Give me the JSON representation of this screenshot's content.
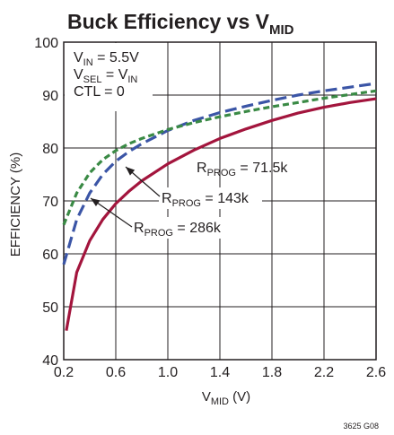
{
  "chart_data": {
    "type": "line",
    "title": {
      "main": "Buck Efficiency vs V",
      "sub": "MID"
    },
    "xlabel": {
      "main": "V",
      "sub": "MID",
      "unit": " (V)"
    },
    "ylabel": "EFFICIENCY (%)",
    "xlim": [
      0.2,
      2.6
    ],
    "ylim": [
      40,
      100
    ],
    "xticks": [
      "0.2",
      "0.6",
      "1.0",
      "1.4",
      "1.8",
      "2.2",
      "2.6"
    ],
    "yticks": [
      "40",
      "50",
      "60",
      "70",
      "80",
      "90",
      "100"
    ],
    "grid": true,
    "conditions": [
      {
        "main": "V",
        "sub": "IN",
        "rest": " = 5.5V"
      },
      {
        "main": "V",
        "sub": "SEL",
        "rest": " = V",
        "sub2": "IN"
      },
      {
        "main": "CTL = 0"
      }
    ],
    "series": [
      {
        "name": "RPROG = 71.5k",
        "label": {
          "main": "R",
          "sub": "PROG",
          "rest": " = 71.5k"
        },
        "color": "#a3153d",
        "dash": "solid",
        "x": [
          0.22,
          0.3,
          0.4,
          0.5,
          0.6,
          0.7,
          0.8,
          1.0,
          1.2,
          1.4,
          1.6,
          1.8,
          2.0,
          2.2,
          2.4,
          2.6
        ],
        "y": [
          45.5,
          56.5,
          62.5,
          66.5,
          69.5,
          71.8,
          73.8,
          77.0,
          79.6,
          81.8,
          83.6,
          85.2,
          86.6,
          87.7,
          88.6,
          89.3
        ]
      },
      {
        "name": "RPROG = 143k",
        "label": {
          "main": "R",
          "sub": "PROG",
          "rest": " = 143k"
        },
        "color": "#3b55a6",
        "dash": "long",
        "x": [
          0.2,
          0.3,
          0.4,
          0.5,
          0.6,
          0.7,
          0.8,
          1.0,
          1.2,
          1.4,
          1.6,
          1.8,
          2.0,
          2.2,
          2.4,
          2.6
        ],
        "y": [
          58.0,
          66.5,
          71.5,
          75.0,
          77.5,
          79.3,
          80.8,
          83.3,
          85.2,
          86.7,
          87.9,
          89.0,
          90.0,
          90.8,
          91.5,
          92.2
        ]
      },
      {
        "name": "RPROG = 286k",
        "label": {
          "main": "R",
          "sub": "PROG",
          "rest": " = 286k"
        },
        "color": "#3a8a45",
        "dash": "short",
        "x": [
          0.2,
          0.3,
          0.4,
          0.5,
          0.6,
          0.7,
          0.8,
          1.0,
          1.2,
          1.4,
          1.6,
          1.8,
          2.0,
          2.2,
          2.4,
          2.6
        ],
        "y": [
          65.5,
          71.5,
          75.3,
          77.8,
          79.5,
          80.8,
          81.8,
          83.5,
          84.8,
          85.9,
          86.9,
          87.8,
          88.6,
          89.4,
          90.1,
          90.8
        ]
      }
    ],
    "figure_code": "3625 G08"
  }
}
